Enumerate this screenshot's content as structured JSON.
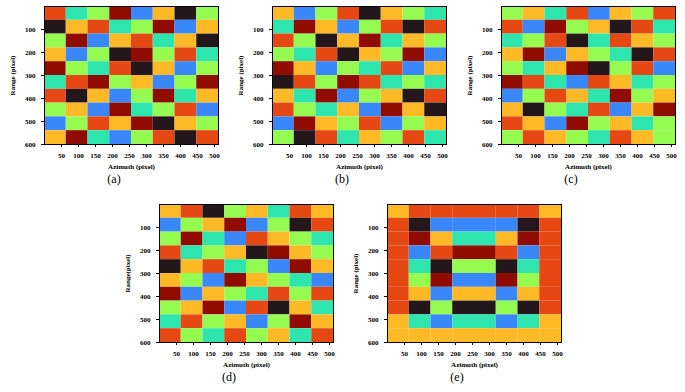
{
  "chart_data": [
    {
      "type": "heatmap",
      "caption": "(a)",
      "xlabel": "Azimuth (pixel)",
      "ylabel": "Range (pixel)",
      "color": "turbo",
      "xlim": [
        0,
        512
      ],
      "xticks": [
        50,
        100,
        150,
        200,
        250,
        300,
        350,
        400,
        450,
        500
      ],
      "ylim": [
        600,
        0
      ],
      "yticks": [
        100,
        200,
        300,
        400,
        500,
        600
      ],
      "cells": {
        "x": [
          0,
          64,
          128,
          192,
          256,
          320,
          384,
          448,
          512
        ],
        "y": [
          0,
          60,
          120,
          180,
          240,
          300,
          360,
          420,
          480,
          540,
          600
        ],
        "range": [
          -3,
          3
        ],
        "values": [
          [
            2,
            -1,
            0,
            3,
            -2,
            1,
            -3,
            0
          ],
          [
            -3,
            1,
            2,
            -1,
            0,
            3,
            -2,
            1
          ],
          [
            0,
            3,
            -2,
            1,
            2,
            -1,
            1,
            -3
          ],
          [
            1,
            -2,
            0,
            -3,
            3,
            0,
            2,
            -1
          ],
          [
            3,
            0,
            -1,
            2,
            -3,
            1,
            -2,
            0
          ],
          [
            -1,
            2,
            3,
            0,
            1,
            -2,
            0,
            3
          ],
          [
            2,
            -3,
            1,
            -2,
            0,
            3,
            -1,
            1
          ],
          [
            0,
            1,
            -2,
            3,
            -1,
            0,
            2,
            -2
          ],
          [
            -2,
            0,
            2,
            1,
            3,
            -3,
            1,
            0
          ],
          [
            1,
            3,
            -1,
            -2,
            0,
            2,
            -3,
            2
          ]
        ]
      }
    },
    {
      "type": "heatmap",
      "caption": "(b)",
      "xlabel": "Azimuth (pixel)",
      "ylabel": "Range (pixel)",
      "color": "turbo",
      "xlim": [
        0,
        512
      ],
      "xticks": [
        50,
        100,
        150,
        200,
        250,
        300,
        350,
        400,
        450,
        500
      ],
      "ylim": [
        600,
        0
      ],
      "yticks": [
        100,
        200,
        300,
        400,
        500,
        600
      ],
      "cells": {
        "x": [
          0,
          64,
          128,
          192,
          256,
          320,
          384,
          448,
          512
        ],
        "y": [
          0,
          60,
          120,
          180,
          240,
          300,
          360,
          420,
          480,
          540,
          600
        ],
        "range": [
          -3,
          3
        ],
        "values": [
          [
            1,
            -2,
            0,
            2,
            -3,
            1,
            0,
            -1
          ],
          [
            -1,
            3,
            1,
            -2,
            0,
            2,
            -3,
            2
          ],
          [
            2,
            0,
            -3,
            1,
            3,
            -1,
            1,
            0
          ],
          [
            0,
            -1,
            2,
            -3,
            1,
            0,
            3,
            -2
          ],
          [
            3,
            1,
            -2,
            0,
            -1,
            2,
            -2,
            1
          ],
          [
            -3,
            2,
            0,
            3,
            2,
            -1,
            0,
            -1
          ],
          [
            1,
            -1,
            3,
            -2,
            0,
            1,
            -3,
            2
          ],
          [
            2,
            0,
            -1,
            1,
            -2,
            3,
            1,
            -3
          ],
          [
            -2,
            3,
            1,
            0,
            2,
            -2,
            0,
            1
          ],
          [
            0,
            -3,
            2,
            -1,
            1,
            0,
            2,
            -1
          ]
        ]
      }
    },
    {
      "type": "heatmap",
      "caption": "(c)",
      "xlabel": "Azimuth (pixel)",
      "ylabel": "Range (pixel)",
      "color": "turbo",
      "xlim": [
        0,
        512
      ],
      "xticks": [
        50,
        100,
        150,
        200,
        250,
        300,
        350,
        400,
        450,
        500
      ],
      "ylim": [
        600,
        0
      ],
      "yticks": [
        100,
        200,
        300,
        400,
        500,
        600
      ],
      "cells": {
        "x": [
          0,
          64,
          128,
          192,
          256,
          320,
          384,
          448,
          512
        ],
        "y": [
          0,
          60,
          120,
          180,
          240,
          300,
          360,
          420,
          480,
          540,
          600
        ],
        "range": [
          -3,
          3
        ],
        "values": [
          [
            0,
            1,
            -1,
            2,
            -2,
            1,
            0,
            2
          ],
          [
            2,
            -2,
            3,
            0,
            1,
            -3,
            2,
            -1
          ],
          [
            -1,
            0,
            2,
            -3,
            -1,
            2,
            1,
            0
          ],
          [
            1,
            3,
            -2,
            1,
            0,
            -1,
            -3,
            2
          ],
          [
            0,
            -1,
            1,
            3,
            -3,
            0,
            2,
            -2
          ],
          [
            3,
            2,
            -1,
            -2,
            2,
            1,
            -1,
            0
          ],
          [
            -2,
            0,
            2,
            1,
            -1,
            3,
            0,
            1
          ],
          [
            1,
            -3,
            0,
            -1,
            2,
            -2,
            1,
            3
          ],
          [
            2,
            1,
            -2,
            3,
            0,
            1,
            -1,
            0
          ],
          [
            0,
            2,
            1,
            0,
            -1,
            2,
            1,
            0
          ]
        ]
      }
    },
    {
      "type": "heatmap",
      "caption": "(d)",
      "xlabel": "Azimuth (pixel)",
      "ylabel": "Range(pixel)",
      "color": "turbo",
      "xlim": [
        0,
        512
      ],
      "xticks": [
        50,
        100,
        150,
        200,
        250,
        300,
        350,
        400,
        450,
        500
      ],
      "ylim": [
        600,
        0
      ],
      "yticks": [
        100,
        200,
        300,
        400,
        500,
        600
      ],
      "cells": {
        "x": [
          0,
          64,
          128,
          192,
          256,
          320,
          384,
          448,
          512
        ],
        "y": [
          0,
          60,
          120,
          180,
          240,
          300,
          360,
          420,
          480,
          540,
          600
        ],
        "range": [
          -3,
          3
        ],
        "values": [
          [
            1,
            2,
            -3,
            0,
            1,
            -1,
            2,
            1
          ],
          [
            -2,
            0,
            1,
            3,
            -2,
            0,
            -3,
            2
          ],
          [
            0,
            3,
            -1,
            -2,
            2,
            1,
            0,
            -1
          ],
          [
            2,
            -1,
            0,
            1,
            -3,
            3,
            1,
            0
          ],
          [
            -3,
            1,
            2,
            -1,
            0,
            -2,
            3,
            1
          ],
          [
            1,
            0,
            -2,
            3,
            1,
            0,
            -1,
            -2
          ],
          [
            3,
            -2,
            1,
            0,
            -1,
            2,
            0,
            2
          ],
          [
            0,
            1,
            3,
            -2,
            2,
            -3,
            1,
            -1
          ],
          [
            -1,
            2,
            0,
            1,
            -2,
            0,
            3,
            1
          ],
          [
            2,
            0,
            -1,
            2,
            0,
            1,
            -1,
            2
          ]
        ]
      }
    },
    {
      "type": "heatmap",
      "caption": "(e)",
      "xlabel": "Azimuth (pixel)",
      "ylabel": "Range (pixel)",
      "color": "turbo",
      "xlim": [
        0,
        512
      ],
      "xticks": [
        50,
        100,
        150,
        200,
        250,
        300,
        350,
        400,
        450,
        500
      ],
      "ylim": [
        600,
        0
      ],
      "yticks": [
        100,
        200,
        300,
        400,
        500,
        600
      ],
      "cells": {
        "x": [
          0,
          64,
          128,
          192,
          256,
          320,
          384,
          448,
          512
        ],
        "y": [
          0,
          60,
          120,
          180,
          240,
          300,
          360,
          420,
          480,
          540,
          600
        ],
        "range": [
          -3,
          3
        ],
        "values": [
          [
            1,
            2,
            2,
            2,
            2,
            2,
            2,
            1
          ],
          [
            2,
            -3,
            -2,
            -2,
            -2,
            -2,
            -3,
            2
          ],
          [
            2,
            3,
            1,
            -1,
            -1,
            1,
            3,
            2
          ],
          [
            2,
            -2,
            2,
            3,
            3,
            2,
            -2,
            2
          ],
          [
            2,
            -1,
            -3,
            0,
            0,
            -3,
            -1,
            2
          ],
          [
            2,
            0,
            3,
            -2,
            -2,
            3,
            0,
            2
          ],
          [
            2,
            1,
            -2,
            1,
            1,
            -2,
            1,
            2
          ],
          [
            2,
            -3,
            0,
            -3,
            -3,
            0,
            -3,
            2
          ],
          [
            1,
            -1,
            -2,
            -1,
            -1,
            -2,
            -1,
            1
          ],
          [
            1,
            1,
            1,
            1,
            1,
            1,
            1,
            1
          ]
        ]
      }
    }
  ]
}
